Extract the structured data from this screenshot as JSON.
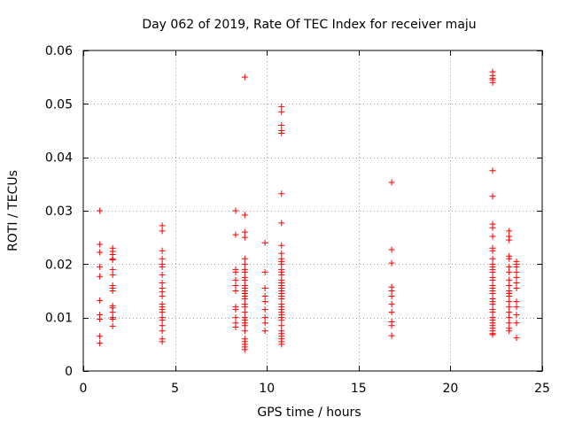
{
  "colors": {
    "marker": "#ff0000",
    "grid": "#a0a0a0",
    "axis": "#000000"
  },
  "chart_data": {
    "type": "scatter",
    "title": "Day 062 of 2019, Rate Of TEC Index for receiver maju",
    "xlabel": "GPS time / hours",
    "ylabel": "ROTI / TECUs",
    "xlim": [
      0,
      25
    ],
    "ylim": [
      0,
      0.06
    ],
    "xticks": [
      0,
      5,
      10,
      15,
      20,
      25
    ],
    "xtick_labels": [
      "0",
      "5",
      "10",
      "15",
      "20",
      "25"
    ],
    "yticks": [
      0,
      0.01,
      0.02,
      0.03,
      0.04,
      0.05,
      0.06
    ],
    "ytick_labels": [
      "0",
      "0.01",
      "0.02",
      "0.03",
      "0.04",
      "0.05",
      "0.06"
    ],
    "grid": true,
    "marker": "+",
    "series": [
      {
        "name": "ROTI",
        "clusters": [
          {
            "x": 0.9,
            "y": [
              0.03,
              0.0237,
              0.0222,
              0.0195,
              0.0177,
              0.0132,
              0.0105,
              0.0097,
              0.0065,
              0.0052
            ]
          },
          {
            "x": 1.6,
            "y": [
              0.023,
              0.0224,
              0.0218,
              0.021,
              0.0208,
              0.019,
              0.018,
              0.016,
              0.0155,
              0.015,
              0.0122,
              0.0118,
              0.011,
              0.01,
              0.0097,
              0.0084
            ]
          },
          {
            "x": 4.3,
            "y": [
              0.0272,
              0.0262,
              0.0225,
              0.021,
              0.02,
              0.0195,
              0.018,
              0.0165,
              0.0155,
              0.0148,
              0.014,
              0.0125,
              0.012,
              0.0115,
              0.011,
              0.01,
              0.0095,
              0.0085,
              0.0075,
              0.006,
              0.0055
            ]
          },
          {
            "x": 8.3,
            "y": [
              0.03,
              0.0255,
              0.019,
              0.0185,
              0.017,
              0.016,
              0.015,
              0.012,
              0.0115,
              0.01,
              0.009,
              0.0082
            ]
          },
          {
            "x": 8.8,
            "y": [
              0.055,
              0.0292,
              0.026,
              0.025,
              0.021,
              0.02,
              0.019,
              0.0185,
              0.0175,
              0.017,
              0.016,
              0.0155,
              0.015,
              0.0145,
              0.014,
              0.0135,
              0.0125,
              0.012,
              0.011,
              0.01,
              0.0095,
              0.009,
              0.0085,
              0.0075,
              0.006,
              0.0055,
              0.005,
              0.0045,
              0.004
            ]
          },
          {
            "x": 9.9,
            "y": [
              0.024,
              0.0185,
              0.0155,
              0.014,
              0.013,
              0.0115,
              0.01,
              0.009,
              0.0075
            ]
          },
          {
            "x": 10.8,
            "y": [
              0.0495,
              0.0485,
              0.046,
              0.045,
              0.0445,
              0.0332,
              0.0277,
              0.0235,
              0.022,
              0.021,
              0.0205,
              0.02,
              0.019,
              0.0185,
              0.018,
              0.017,
              0.0165,
              0.016,
              0.0155,
              0.015,
              0.0145,
              0.014,
              0.0135,
              0.0125,
              0.012,
              0.0115,
              0.011,
              0.0105,
              0.01,
              0.0095,
              0.0085,
              0.0075,
              0.007,
              0.0065,
              0.006,
              0.0055,
              0.005
            ]
          },
          {
            "x": 16.8,
            "y": [
              0.0353,
              0.0227,
              0.0202,
              0.0157,
              0.015,
              0.014,
              0.0125,
              0.011,
              0.0092,
              0.0085,
              0.0066
            ]
          },
          {
            "x": 22.3,
            "y": [
              0.056,
              0.0553,
              0.0548,
              0.0545,
              0.054,
              0.0375,
              0.0327,
              0.0275,
              0.0268,
              0.0252,
              0.023,
              0.0225,
              0.021,
              0.02,
              0.0195,
              0.019,
              0.0185,
              0.0175,
              0.017,
              0.016,
              0.0155,
              0.015,
              0.0145,
              0.0135,
              0.013,
              0.0125,
              0.0115,
              0.011,
              0.01,
              0.0095,
              0.009,
              0.0085,
              0.008,
              0.0075,
              0.007,
              0.0068
            ]
          },
          {
            "x": 23.2,
            "y": [
              0.0262,
              0.0252,
              0.0245,
              0.0215,
              0.021,
              0.0195,
              0.0185,
              0.017,
              0.016,
              0.015,
              0.0145,
              0.014,
              0.013,
              0.012,
              0.011,
              0.01,
              0.009,
              0.008,
              0.0075
            ]
          },
          {
            "x": 23.6,
            "y": [
              0.0205,
              0.02,
              0.0195,
              0.0185,
              0.0175,
              0.0165,
              0.0155,
              0.013,
              0.012,
              0.0105,
              0.009,
              0.0062
            ]
          }
        ]
      }
    ]
  }
}
